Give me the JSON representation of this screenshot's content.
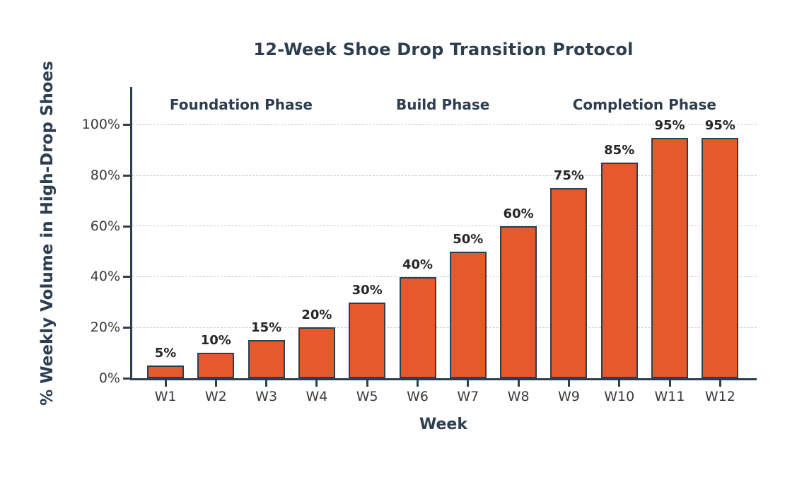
{
  "chart_data": {
    "type": "bar",
    "title": "12-Week Shoe Drop Transition Protocol",
    "xlabel": "Week",
    "ylabel": "% Weekly Volume in High-Drop Shoes",
    "categories": [
      "W1",
      "W2",
      "W3",
      "W4",
      "W5",
      "W6",
      "W7",
      "W8",
      "W9",
      "W10",
      "W11",
      "W12"
    ],
    "values": [
      5,
      10,
      15,
      20,
      30,
      40,
      50,
      60,
      75,
      85,
      95,
      95
    ],
    "bar_labels": [
      "5%",
      "10%",
      "15%",
      "20%",
      "30%",
      "40%",
      "50%",
      "60%",
      "75%",
      "85%",
      "95%",
      "95%"
    ],
    "yticks": [
      0,
      20,
      40,
      60,
      80,
      100
    ],
    "ytick_labels": [
      "0%",
      "20%",
      "40%",
      "60%",
      "80%",
      "100%"
    ],
    "ylim": [
      0,
      115
    ],
    "grid": "horizontal-dashed",
    "legend": "none",
    "annotations": [
      {
        "label": "Foundation Phase",
        "center_index": 1.5
      },
      {
        "label": "Build Phase",
        "center_index": 5.5
      },
      {
        "label": "Completion Phase",
        "center_index": 9.5
      }
    ],
    "colors": {
      "bar_fill": "#E45A2C",
      "bar_edge": "#2C3E50",
      "axis_and_titles": "#2C3E50",
      "tick_labels": "#3a3a3a",
      "value_labels": "#262626",
      "gridline": "#cccccc",
      "background": "#ffffff"
    }
  }
}
